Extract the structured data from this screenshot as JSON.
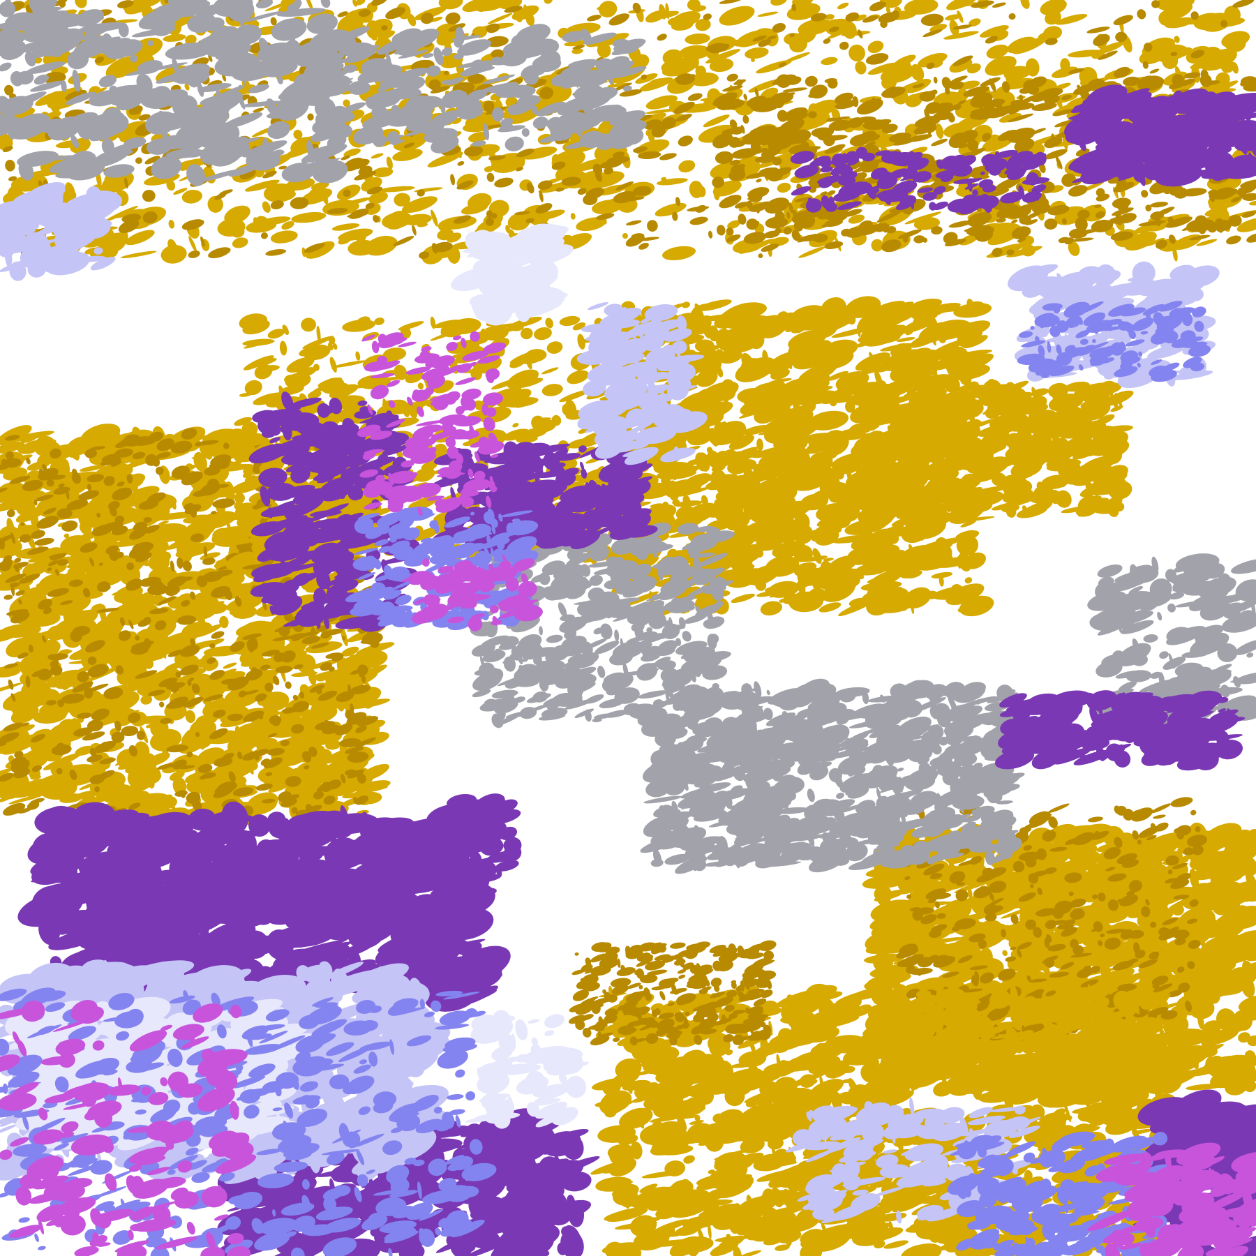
{
  "image": {
    "kind": "false-color satellite cloud classification",
    "background_color": "#ffffff",
    "palette": {
      "gold": "#d6aa00",
      "dark_gold": "#b88a00",
      "purple": "#7a38b4",
      "magenta": "#c854dc",
      "periwinkle": "#8484f0",
      "lavender": "#c4c4f6",
      "pale_lavender": "#e8e8fc",
      "gray": "#a2a2aa"
    }
  }
}
